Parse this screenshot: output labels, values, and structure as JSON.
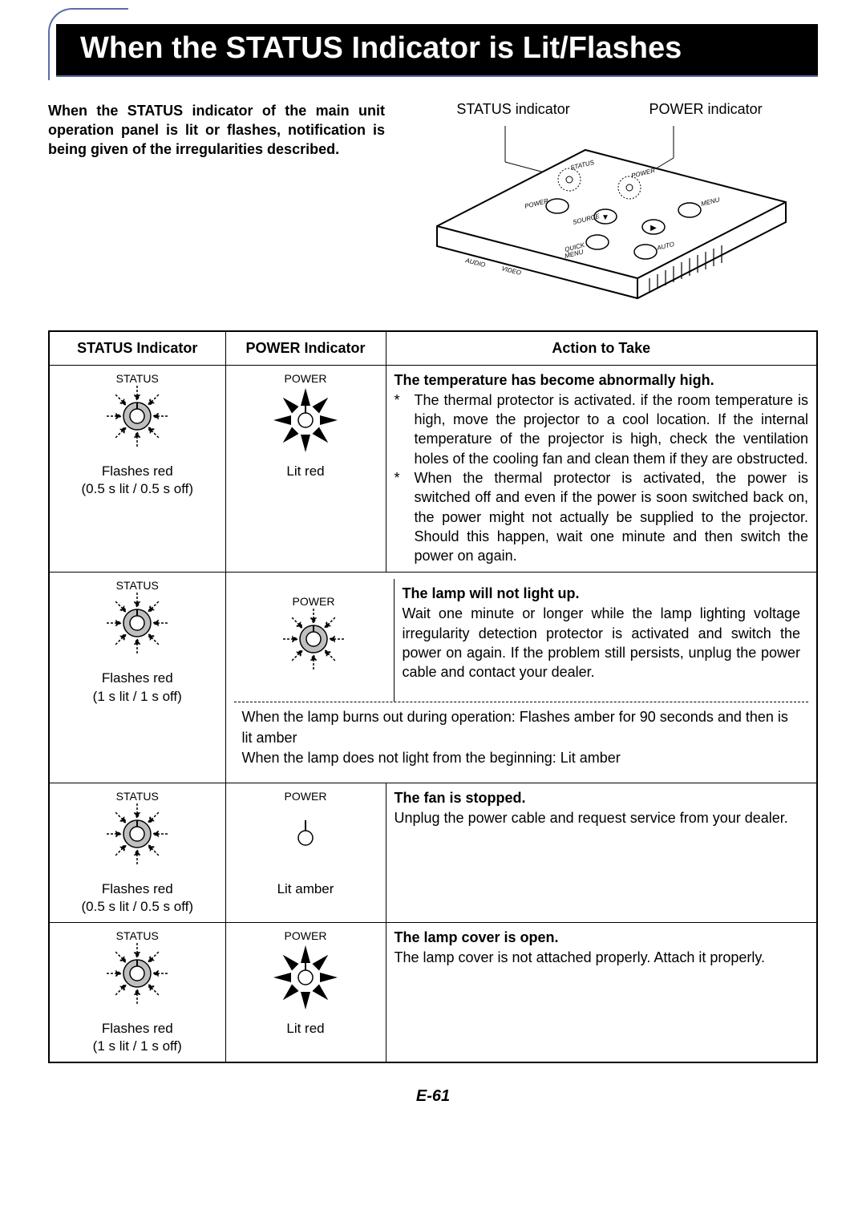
{
  "title": "When the STATUS Indicator is Lit/Flashes",
  "intro": "When the STATUS indicator of the main unit operation panel is lit or flashes, notification is being given of the irregularities described.",
  "diagram": {
    "label_status": "STATUS indicator",
    "label_power": "POWER indicator",
    "panel_labels": {
      "status": "STATUS",
      "power_ind": "POWER",
      "power_btn": "POWER",
      "source": "SOURCE",
      "menu": "MENU",
      "quick": "QUICK MENU",
      "auto": "AUTO",
      "audio": "AUDIO",
      "video": "VIDEO"
    }
  },
  "table": {
    "headers": {
      "status": "STATUS Indicator",
      "power": "POWER Indicator",
      "action": "Action to Take"
    },
    "rows": [
      {
        "status": {
          "label": "STATUS",
          "type": "flash-burst",
          "caption1": "Flashes red",
          "caption2": "(0.5 s lit / 0.5 s off)"
        },
        "power": {
          "label": "POWER",
          "type": "lit-burst",
          "caption1": "Lit red",
          "caption2": ""
        },
        "action": {
          "title": "The temperature has become abnormally high.",
          "bullets": [
            "The thermal protector is activated. if the room temperature is high, move the projector to a cool location. If the internal temperature of the projector is high, check the ventilation holes of the cooling fan and clean them if they are obstructed.",
            "When the thermal protector is activated, the power is switched off and even if the power is soon switched back on, the power might not actually be supplied to the projector. Should this happen, wait one minute and then switch the power on again."
          ]
        }
      },
      {
        "status": {
          "label": "STATUS",
          "type": "flash-burst",
          "caption1": "Flashes red",
          "caption2": "(1 s lit / 1 s off)"
        },
        "power": {
          "label": "POWER",
          "type": "flash-burst",
          "caption1": "",
          "caption2": ""
        },
        "action": {
          "title": "The lamp will not light up.",
          "body": "Wait one minute or longer while the lamp lighting voltage irregularity detection protector is activated and switch the power on again. If the problem still persists, unplug the power cable and contact your dealer."
        },
        "note1": "When the lamp burns out during operation: Flashes amber for 90 seconds and then is lit amber",
        "note2": "When the lamp does not light from the beginning: Lit amber"
      },
      {
        "status": {
          "label": "STATUS",
          "type": "flash-burst",
          "caption1": "Flashes red",
          "caption2": "(0.5 s lit / 0.5 s off)"
        },
        "power": {
          "label": "POWER",
          "type": "lit-plain",
          "caption1": "Lit amber",
          "caption2": ""
        },
        "action": {
          "title": "The fan is stopped.",
          "body": "Unplug the power cable and request service from your dealer."
        }
      },
      {
        "status": {
          "label": "STATUS",
          "type": "flash-burst",
          "caption1": "Flashes red",
          "caption2": "(1 s lit / 1 s off)"
        },
        "power": {
          "label": "POWER",
          "type": "lit-burst",
          "caption1": "Lit red",
          "caption2": ""
        },
        "action": {
          "title": "The lamp cover is open.",
          "body": "The lamp cover is not attached properly. Attach it properly."
        }
      }
    ]
  },
  "page_number": "E-61",
  "colors": {
    "accent": "#5a6ea6",
    "black": "#000000",
    "white": "#ffffff"
  }
}
